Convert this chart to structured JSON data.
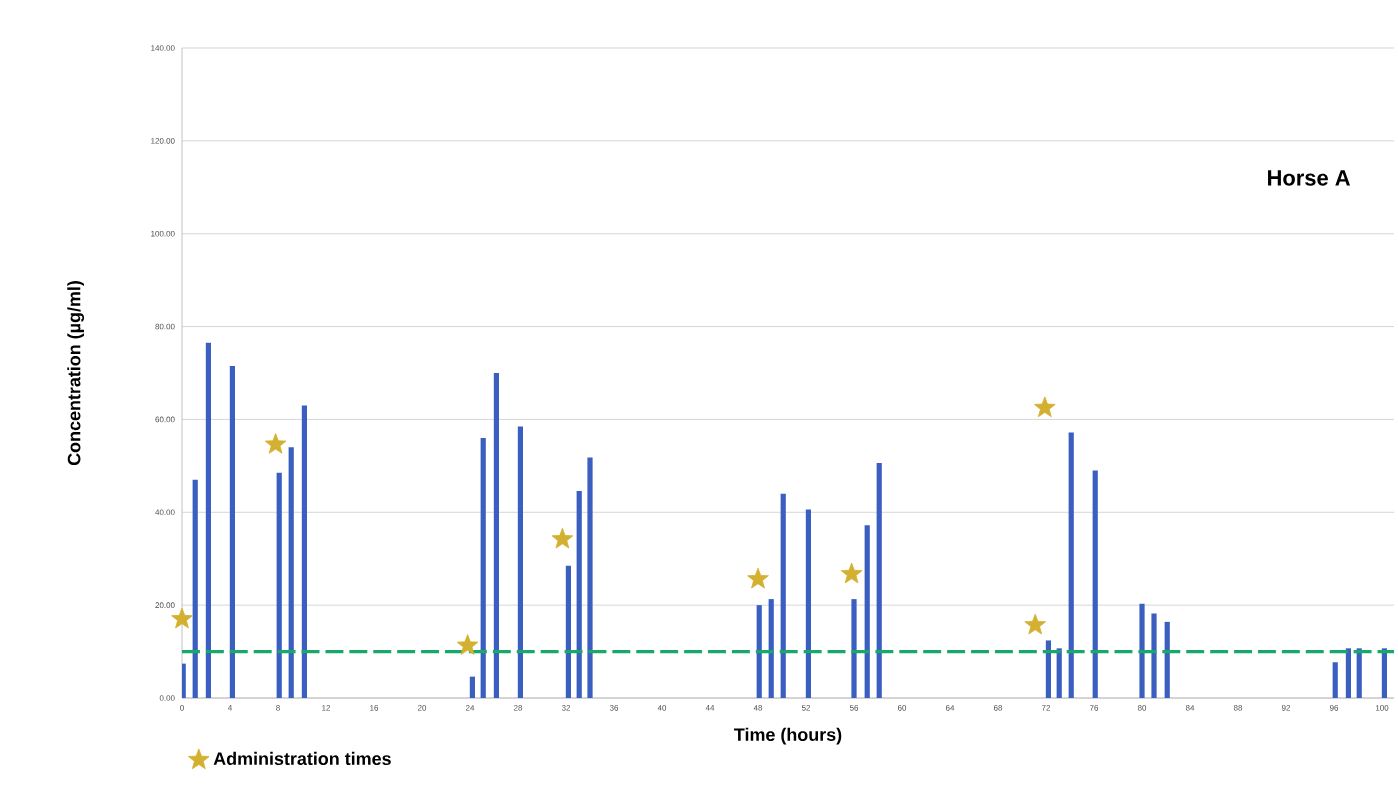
{
  "chart_data": {
    "type": "bar",
    "xlabel": "Time (hours)",
    "ylabel": "Concentration (µg/ml)",
    "annotations": [
      "Horse A"
    ],
    "xlim": [
      0,
      101
    ],
    "ylim": [
      0,
      140
    ],
    "xticks": [
      0,
      4,
      8,
      12,
      16,
      20,
      24,
      28,
      32,
      36,
      40,
      44,
      48,
      52,
      56,
      60,
      64,
      68,
      72,
      76,
      80,
      84,
      88,
      92,
      96,
      100
    ],
    "yticks": [
      {
        "value": 0,
        "label": "0.00"
      },
      {
        "value": 20,
        "label": "20.00"
      },
      {
        "value": 40,
        "label": "40.00"
      },
      {
        "value": 60,
        "label": "60.00"
      },
      {
        "value": 80,
        "label": "80.00"
      },
      {
        "value": 100,
        "label": "100.00"
      },
      {
        "value": 120,
        "label": "120.00"
      },
      {
        "value": 140,
        "label": "140.00"
      }
    ],
    "grid": "y",
    "legend": "bottom left",
    "marker": "star",
    "series": [
      {
        "color": "#3a5fc0",
        "x": [
          0.1,
          1.1,
          2.2,
          4.2,
          8.1,
          9.1,
          10.2,
          24.2,
          25.1,
          26.2,
          28.2,
          32.2,
          33.1,
          34,
          48.1,
          49.1,
          50.1,
          52.2,
          56,
          57.1,
          58.1,
          72.2,
          73.1,
          74.1,
          76.1,
          80,
          81,
          82.1,
          96.1,
          97.2,
          98.1,
          100.2
        ],
        "values": [
          7.4,
          47,
          76.5,
          71.5,
          48.5,
          54,
          63,
          4.6,
          56,
          70,
          58.5,
          28.5,
          44.6,
          51.8,
          20,
          21.3,
          44,
          40.6,
          21.3,
          37.2,
          50.6,
          12.4,
          10.7,
          57.2,
          49,
          20.3,
          18.2,
          16.4,
          7.7,
          10.7,
          10.7,
          10.7
        ]
      },
      {
        "type": "scatter",
        "name": "Administration times",
        "color": "#d4b030",
        "x": [
          0,
          7.8,
          23.8,
          31.7,
          48,
          55.8,
          71.9,
          71.1
        ],
        "values": [
          17,
          54.6,
          11.3,
          34.2,
          25.6,
          26.7,
          62.5,
          15.7
        ]
      }
    ],
    "ref_lines": [
      {
        "axis": "y",
        "value": 10,
        "color": "#1aa86a",
        "line_style": "dashed"
      }
    ]
  }
}
